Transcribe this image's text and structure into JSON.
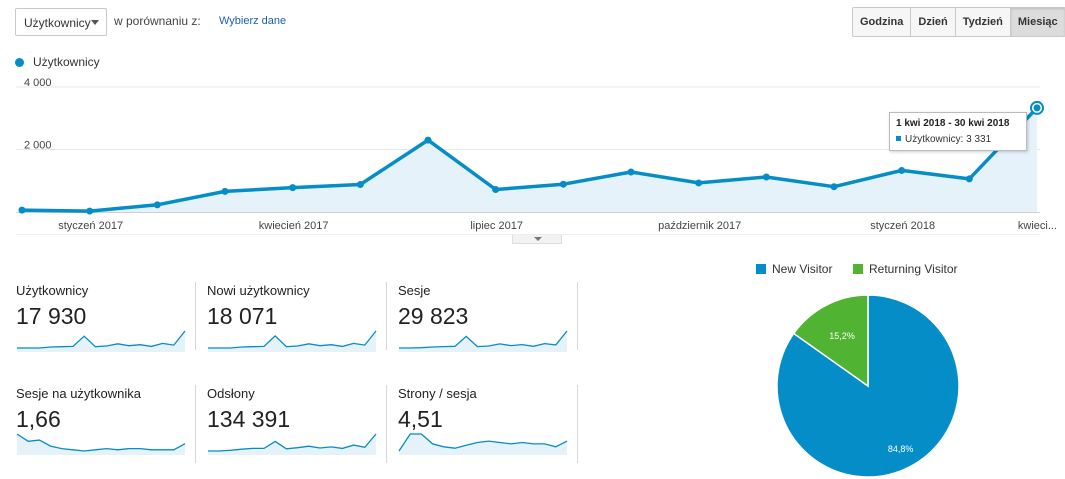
{
  "toolbar": {
    "metric_select": "Użytkownicy",
    "compare_text": "w porównaniu z:",
    "compare_link": "Wybierz dane",
    "granularity": [
      "Godzina",
      "Dzień",
      "Tydzień",
      "Miesiąc"
    ],
    "granularity_active": "Miesiąc"
  },
  "chart_data": [
    {
      "type": "line",
      "series": [
        {
          "name": "Użytkownicy",
          "color": "#058dc7",
          "values": [
            60,
            30,
            230,
            660,
            780,
            880,
            2300,
            720,
            890,
            1280,
            930,
            1120,
            810,
            1330,
            1060,
            3331
          ]
        }
      ],
      "ylim": [
        0,
        4000
      ],
      "y_ticks": [
        "4 000",
        "2 000"
      ],
      "x_tick_labels": [
        "styczeń 2017",
        "kwiecień 2017",
        "lipiec 2017",
        "październik 2017",
        "styczeń 2018",
        "kwieci..."
      ],
      "grid": true,
      "legend": "top-left",
      "tooltip": {
        "title": "1 kwi 2018 - 30 kwi 2018",
        "line": "Użytkownicy: 3 331"
      }
    },
    {
      "type": "pie",
      "labels": [
        "New Visitor",
        "Returning Visitor"
      ],
      "values": [
        84.8,
        15.2
      ],
      "display": [
        "84,8%",
        "15,2%"
      ],
      "colors": [
        "#058dc7",
        "#50b432"
      ],
      "legend": "top"
    }
  ],
  "metrics": [
    {
      "label": "Użytkownicy",
      "value": "17 930",
      "spark": [
        1,
        1,
        1,
        1.3,
        1.4,
        1.5,
        4.6,
        1.4,
        1.6,
        2.3,
        1.7,
        2.0,
        1.5,
        2.4,
        1.9,
        6.2
      ]
    },
    {
      "label": "Nowi użytkownicy",
      "value": "18 071",
      "spark": [
        1,
        1,
        1,
        1.3,
        1.4,
        1.5,
        4.7,
        1.4,
        1.6,
        2.3,
        1.7,
        2.0,
        1.5,
        2.4,
        1.9,
        6.2
      ]
    },
    {
      "label": "Sesje",
      "value": "29 823",
      "spark": [
        1,
        1,
        1.1,
        1.3,
        1.4,
        1.5,
        4.4,
        1.4,
        1.6,
        2.2,
        1.7,
        2.0,
        1.5,
        2.3,
        1.9,
        6.0
      ]
    },
    {
      "label": "Sesje na użytkownika",
      "value": "1,66",
      "spark": [
        4.6,
        4.0,
        4.1,
        3.6,
        3.4,
        3.3,
        3.2,
        3.3,
        3.4,
        3.3,
        3.4,
        3.4,
        3.3,
        3.3,
        3.3,
        3.8
      ]
    },
    {
      "label": "Odsłony",
      "value": "134 391",
      "spark": [
        1,
        1,
        1.2,
        1.5,
        1.7,
        1.7,
        3.6,
        1.6,
        1.9,
        2.3,
        1.8,
        2.1,
        1.7,
        2.6,
        2.0,
        5.6
      ]
    },
    {
      "label": "Strony / sesja",
      "value": "4,51",
      "spark": [
        3.2,
        4.4,
        4.4,
        3.7,
        3.5,
        3.4,
        3.6,
        3.8,
        3.9,
        3.8,
        3.7,
        3.8,
        3.7,
        3.7,
        3.5,
        3.9
      ]
    }
  ]
}
